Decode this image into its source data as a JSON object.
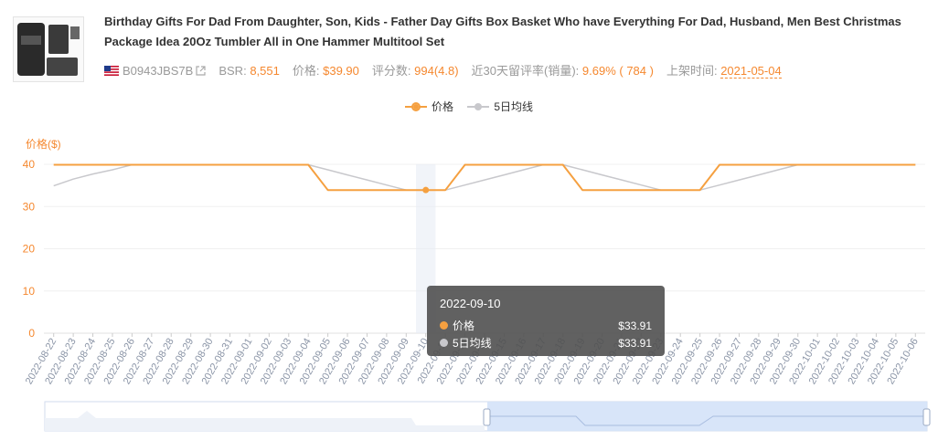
{
  "product": {
    "title": "Birthday Gifts For Dad From Daughter, Son, Kids - Father Day Gifts Box Basket Who have Everything For Dad, Husband, Men Best Christmas Package Idea 20Oz Tumbler All in One Hammer Multitool Set",
    "asin": "B0943JBS7B",
    "bsr_label": "BSR:",
    "bsr_value": "8,551",
    "price_label": "价格:",
    "price_value": "$39.90",
    "reviews_label": "评分数:",
    "reviews_value": "994(4.8)",
    "retention_label": "近30天留评率(销量):",
    "retention_value": "9.69% ( 784 )",
    "listed_label": "上架时间:",
    "listed_value": "2021-05-04"
  },
  "colors": {
    "price": "#f5a040",
    "avg": "#c8c8cc",
    "accent": "#f5882f",
    "tooltip_bg": "#505050"
  },
  "chart_data": {
    "type": "line",
    "ylabel": "价格($)",
    "ylim": [
      0,
      40
    ],
    "yticks": [
      0,
      10,
      20,
      30,
      40
    ],
    "grid": true,
    "legend_position": "top-center",
    "x": [
      "2022-08-22",
      "2022-08-23",
      "2022-08-24",
      "2022-08-25",
      "2022-08-26",
      "2022-08-27",
      "2022-08-28",
      "2022-08-29",
      "2022-08-30",
      "2022-08-31",
      "2022-09-01",
      "2022-09-02",
      "2022-09-03",
      "2022-09-04",
      "2022-09-05",
      "2022-09-06",
      "2022-09-07",
      "2022-09-08",
      "2022-09-09",
      "2022-09-10",
      "2022-09-11",
      "2022-09-12",
      "2022-09-14",
      "2022-09-15",
      "2022-09-16",
      "2022-09-17",
      "2022-09-18",
      "2022-09-19",
      "2022-09-20",
      "2022-09-21",
      "2022-09-22",
      "2022-09-23",
      "2022-09-24",
      "2022-09-25",
      "2022-09-26",
      "2022-09-27",
      "2022-09-28",
      "2022-09-29",
      "2022-09-30",
      "2022-10-01",
      "2022-10-02",
      "2022-10-03",
      "2022-10-04",
      "2022-10-05",
      "2022-10-06"
    ],
    "series": [
      {
        "name": "价格",
        "values": [
          39.9,
          39.9,
          39.9,
          39.9,
          39.9,
          39.9,
          39.9,
          39.9,
          39.9,
          39.9,
          39.9,
          39.9,
          39.9,
          39.9,
          33.91,
          33.91,
          33.91,
          33.91,
          33.91,
          33.91,
          33.91,
          39.9,
          39.9,
          39.9,
          39.9,
          39.9,
          39.9,
          33.91,
          33.91,
          33.91,
          33.91,
          33.91,
          33.91,
          33.91,
          39.9,
          39.9,
          39.9,
          39.9,
          39.9,
          39.9,
          39.9,
          39.9,
          39.9,
          39.9,
          39.9
        ]
      },
      {
        "name": "5日均线",
        "values": [
          34.9,
          36.5,
          37.7,
          38.7,
          39.9,
          39.9,
          39.9,
          39.9,
          39.9,
          39.9,
          39.9,
          39.9,
          39.9,
          39.9,
          38.7,
          37.5,
          36.3,
          35.1,
          33.91,
          33.91,
          33.91,
          35.1,
          36.3,
          37.5,
          38.7,
          39.9,
          39.9,
          38.7,
          37.5,
          36.3,
          35.1,
          33.91,
          33.91,
          33.91,
          35.1,
          36.3,
          37.5,
          38.7,
          39.9,
          39.9,
          39.9,
          39.9,
          39.9,
          39.9,
          39.9
        ]
      }
    ],
    "highlight_index": 19
  },
  "tooltip": {
    "date": "2022-09-10",
    "rows": [
      {
        "label": "价格",
        "value": "$33.91"
      },
      {
        "label": "5日均线",
        "value": "$33.91"
      }
    ]
  }
}
